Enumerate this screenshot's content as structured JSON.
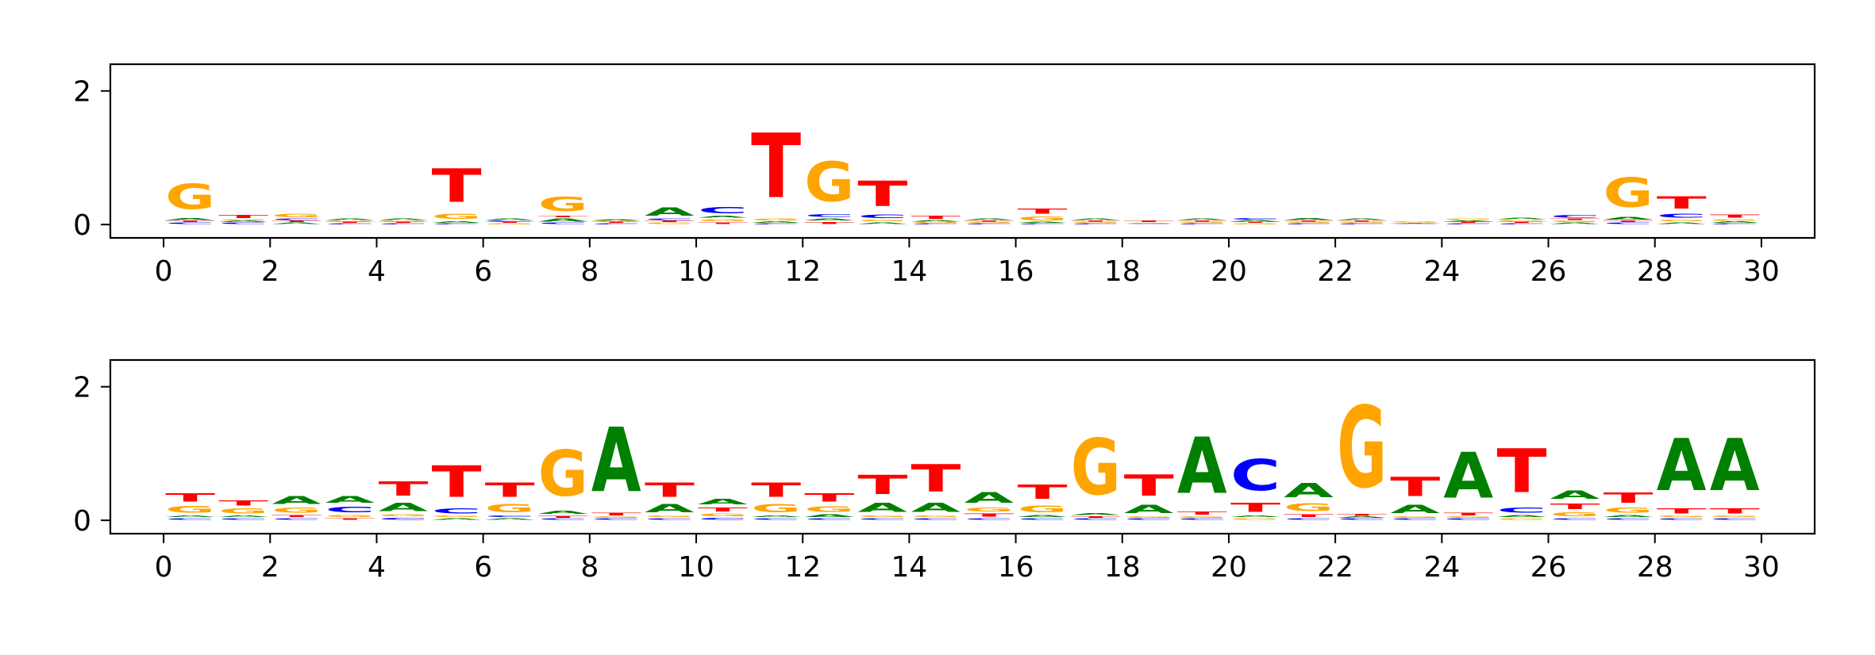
{
  "colors": {
    "A": "#008000",
    "C": "#0000ff",
    "G": "#ffa500",
    "T": "#ff0000"
  },
  "chart_data": [
    {
      "type": "sequence-logo",
      "xlim": [
        -1,
        31
      ],
      "ylim": [
        -0.2,
        2.4
      ],
      "xticks": [
        "0",
        "2",
        "4",
        "6",
        "8",
        "10",
        "12",
        "14",
        "16",
        "18",
        "20",
        "22",
        "24",
        "26",
        "28",
        "30"
      ],
      "yticks": [
        "0",
        "2"
      ],
      "positions": [
        [
          [
            "C",
            0.03
          ],
          [
            "T",
            0.03
          ],
          [
            "A",
            0.05
          ],
          [
            "G",
            0.6
          ]
        ],
        [
          [
            "C",
            0.03
          ],
          [
            "A",
            0.03
          ],
          [
            "G",
            0.02
          ],
          [
            "T",
            0.07
          ]
        ],
        [
          [
            "A",
            0.03
          ],
          [
            "T",
            0.03
          ],
          [
            "C",
            0.03
          ],
          [
            "G",
            0.08
          ]
        ],
        [
          [
            "C",
            0.02
          ],
          [
            "T",
            0.02
          ],
          [
            "G",
            0.02
          ],
          [
            "A",
            0.03
          ]
        ],
        [
          [
            "C",
            0.02
          ],
          [
            "T",
            0.02
          ],
          [
            "G",
            0.02
          ],
          [
            "A",
            0.03
          ]
        ],
        [
          [
            "C",
            0.02
          ],
          [
            "A",
            0.04
          ],
          [
            "G",
            0.12
          ],
          [
            "T",
            0.8
          ]
        ],
        [
          [
            "G",
            0.02
          ],
          [
            "T",
            0.02
          ],
          [
            "C",
            0.02
          ],
          [
            "A",
            0.03
          ]
        ],
        [
          [
            "C",
            0.03
          ],
          [
            "A",
            0.07
          ],
          [
            "T",
            0.03
          ],
          [
            "G",
            0.35
          ]
        ],
        [
          [
            "C",
            0.02
          ],
          [
            "T",
            0.02
          ],
          [
            "G",
            0.02
          ],
          [
            "A",
            0.02
          ]
        ],
        [
          [
            "G",
            0.03
          ],
          [
            "T",
            0.03
          ],
          [
            "C",
            0.03
          ],
          [
            "A",
            0.2
          ]
        ],
        [
          [
            "T",
            0.04
          ],
          [
            "G",
            0.05
          ],
          [
            "A",
            0.05
          ],
          [
            "C",
            0.15
          ]
        ],
        [
          [
            "C",
            0.02
          ],
          [
            "A",
            0.03
          ],
          [
            "G",
            0.05
          ],
          [
            "T",
            1.55
          ]
        ],
        [
          [
            "T",
            0.05
          ],
          [
            "A",
            0.05
          ],
          [
            "C",
            0.06
          ],
          [
            "G",
            0.95
          ]
        ],
        [
          [
            "A",
            0.04
          ],
          [
            "G",
            0.04
          ],
          [
            "C",
            0.08
          ],
          [
            "T",
            0.6
          ]
        ],
        [
          [
            "C",
            0.02
          ],
          [
            "G",
            0.02
          ],
          [
            "A",
            0.03
          ],
          [
            "T",
            0.07
          ]
        ],
        [
          [
            "C",
            0.02
          ],
          [
            "G",
            0.02
          ],
          [
            "T",
            0.02
          ],
          [
            "A",
            0.03
          ]
        ],
        [
          [
            "C",
            0.02
          ],
          [
            "A",
            0.02
          ],
          [
            "G",
            0.1
          ],
          [
            "T",
            0.12
          ]
        ],
        [
          [
            "C",
            0.02
          ],
          [
            "G",
            0.02
          ],
          [
            "T",
            0.02
          ],
          [
            "A",
            0.03
          ]
        ],
        [
          [
            "C",
            0.01
          ],
          [
            "G",
            0.01
          ],
          [
            "A",
            0.01
          ],
          [
            "T",
            0.03
          ]
        ],
        [
          [
            "C",
            0.02
          ],
          [
            "G",
            0.02
          ],
          [
            "T",
            0.02
          ],
          [
            "A",
            0.03
          ]
        ],
        [
          [
            "G",
            0.02
          ],
          [
            "T",
            0.02
          ],
          [
            "A",
            0.03
          ],
          [
            "C",
            0.03
          ]
        ],
        [
          [
            "C",
            0.02
          ],
          [
            "G",
            0.02
          ],
          [
            "T",
            0.02
          ],
          [
            "A",
            0.05
          ]
        ],
        [
          [
            "C",
            0.02
          ],
          [
            "G",
            0.02
          ],
          [
            "T",
            0.02
          ],
          [
            "A",
            0.03
          ]
        ],
        [
          [
            "C",
            0.01
          ],
          [
            "T",
            0.01
          ],
          [
            "A",
            0.01
          ],
          [
            "G",
            0.02
          ]
        ],
        [
          [
            "C",
            0.02
          ],
          [
            "T",
            0.02
          ],
          [
            "A",
            0.02
          ],
          [
            "G",
            0.04
          ]
        ],
        [
          [
            "C",
            0.02
          ],
          [
            "T",
            0.02
          ],
          [
            "G",
            0.03
          ],
          [
            "A",
            0.04
          ]
        ],
        [
          [
            "A",
            0.03
          ],
          [
            "G",
            0.03
          ],
          [
            "T",
            0.03
          ],
          [
            "C",
            0.06
          ]
        ],
        [
          [
            "C",
            0.03
          ],
          [
            "T",
            0.03
          ],
          [
            "A",
            0.06
          ],
          [
            "G",
            0.7
          ]
        ],
        [
          [
            "A",
            0.04
          ],
          [
            "G",
            0.04
          ],
          [
            "C",
            0.1
          ],
          [
            "T",
            0.3
          ]
        ],
        [
          [
            "C",
            0.02
          ],
          [
            "A",
            0.03
          ],
          [
            "G",
            0.04
          ],
          [
            "T",
            0.07
          ]
        ]
      ]
    },
    {
      "type": "sequence-logo",
      "xlim": [
        -1,
        31
      ],
      "ylim": [
        -0.2,
        2.4
      ],
      "xticks": [
        "0",
        "2",
        "4",
        "6",
        "8",
        "10",
        "12",
        "14",
        "16",
        "18",
        "20",
        "22",
        "24",
        "26",
        "28",
        "30"
      ],
      "yticks": [
        "0",
        "2"
      ],
      "positions": [
        [
          [
            "C",
            0.04
          ],
          [
            "A",
            0.04
          ],
          [
            "G",
            0.16
          ],
          [
            "T",
            0.2
          ]
        ],
        [
          [
            "C",
            0.04
          ],
          [
            "A",
            0.04
          ],
          [
            "G",
            0.12
          ],
          [
            "T",
            0.12
          ]
        ],
        [
          [
            "C",
            0.04
          ],
          [
            "T",
            0.05
          ],
          [
            "G",
            0.12
          ],
          [
            "A",
            0.18
          ]
        ],
        [
          [
            "T",
            0.04
          ],
          [
            "G",
            0.05
          ],
          [
            "C",
            0.14
          ],
          [
            "A",
            0.16
          ]
        ],
        [
          [
            "C",
            0.05
          ],
          [
            "G",
            0.05
          ],
          [
            "A",
            0.2
          ],
          [
            "T",
            0.35
          ]
        ],
        [
          [
            "A",
            0.04
          ],
          [
            "G",
            0.04
          ],
          [
            "C",
            0.12
          ],
          [
            "T",
            0.75
          ]
        ],
        [
          [
            "A",
            0.04
          ],
          [
            "C",
            0.04
          ],
          [
            "G",
            0.2
          ],
          [
            "T",
            0.35
          ]
        ],
        [
          [
            "C",
            0.03
          ],
          [
            "T",
            0.05
          ],
          [
            "A",
            0.07
          ],
          [
            "G",
            1.1
          ]
        ],
        [
          [
            "C",
            0.03
          ],
          [
            "G",
            0.03
          ],
          [
            "T",
            0.06
          ],
          [
            "A",
            1.55
          ]
        ],
        [
          [
            "C",
            0.04
          ],
          [
            "G",
            0.04
          ],
          [
            "A",
            0.2
          ],
          [
            "T",
            0.35
          ]
        ],
        [
          [
            "C",
            0.05
          ],
          [
            "G",
            0.06
          ],
          [
            "T",
            0.1
          ],
          [
            "A",
            0.14
          ]
        ],
        [
          [
            "C",
            0.04
          ],
          [
            "A",
            0.04
          ],
          [
            "G",
            0.2
          ],
          [
            "T",
            0.35
          ]
        ],
        [
          [
            "C",
            0.04
          ],
          [
            "A",
            0.06
          ],
          [
            "G",
            0.14
          ],
          [
            "T",
            0.2
          ]
        ],
        [
          [
            "C",
            0.04
          ],
          [
            "G",
            0.04
          ],
          [
            "A",
            0.22
          ],
          [
            "T",
            0.45
          ]
        ],
        [
          [
            "C",
            0.04
          ],
          [
            "G",
            0.04
          ],
          [
            "A",
            0.22
          ],
          [
            "T",
            0.65
          ]
        ],
        [
          [
            "C",
            0.04
          ],
          [
            "T",
            0.07
          ],
          [
            "G",
            0.1
          ],
          [
            "A",
            0.26
          ]
        ],
        [
          [
            "C",
            0.04
          ],
          [
            "A",
            0.05
          ],
          [
            "G",
            0.16
          ],
          [
            "T",
            0.35
          ]
        ],
        [
          [
            "C",
            0.03
          ],
          [
            "T",
            0.04
          ],
          [
            "A",
            0.05
          ],
          [
            "G",
            1.35
          ]
        ],
        [
          [
            "C",
            0.03
          ],
          [
            "G",
            0.04
          ],
          [
            "A",
            0.2
          ],
          [
            "T",
            0.5
          ]
        ],
        [
          [
            "C",
            0.03
          ],
          [
            "G",
            0.04
          ],
          [
            "T",
            0.07
          ],
          [
            "A",
            1.35
          ]
        ],
        [
          [
            "G",
            0.04
          ],
          [
            "A",
            0.04
          ],
          [
            "T",
            0.22
          ],
          [
            "C",
            0.75
          ]
        ],
        [
          [
            "C",
            0.04
          ],
          [
            "T",
            0.06
          ],
          [
            "G",
            0.18
          ],
          [
            "A",
            0.34
          ]
        ],
        [
          [
            "C",
            0.03
          ],
          [
            "A",
            0.03
          ],
          [
            "T",
            0.05
          ],
          [
            "G",
            1.95
          ]
        ],
        [
          [
            "C",
            0.03
          ],
          [
            "G",
            0.04
          ],
          [
            "A",
            0.2
          ],
          [
            "T",
            0.45
          ]
        ],
        [
          [
            "C",
            0.03
          ],
          [
            "G",
            0.03
          ],
          [
            "T",
            0.06
          ],
          [
            "A",
            1.1
          ]
        ],
        [
          [
            "G",
            0.04
          ],
          [
            "A",
            0.05
          ],
          [
            "C",
            0.12
          ],
          [
            "T",
            1.05
          ]
        ],
        [
          [
            "C",
            0.04
          ],
          [
            "G",
            0.1
          ],
          [
            "T",
            0.14
          ],
          [
            "A",
            0.2
          ]
        ],
        [
          [
            "C",
            0.04
          ],
          [
            "A",
            0.05
          ],
          [
            "G",
            0.12
          ],
          [
            "T",
            0.25
          ]
        ],
        [
          [
            "C",
            0.04
          ],
          [
            "G",
            0.04
          ],
          [
            "T",
            0.12
          ],
          [
            "A",
            1.25
          ]
        ],
        [
          [
            "C",
            0.04
          ],
          [
            "G",
            0.04
          ],
          [
            "T",
            0.12
          ],
          [
            "A",
            1.25
          ]
        ]
      ]
    }
  ]
}
